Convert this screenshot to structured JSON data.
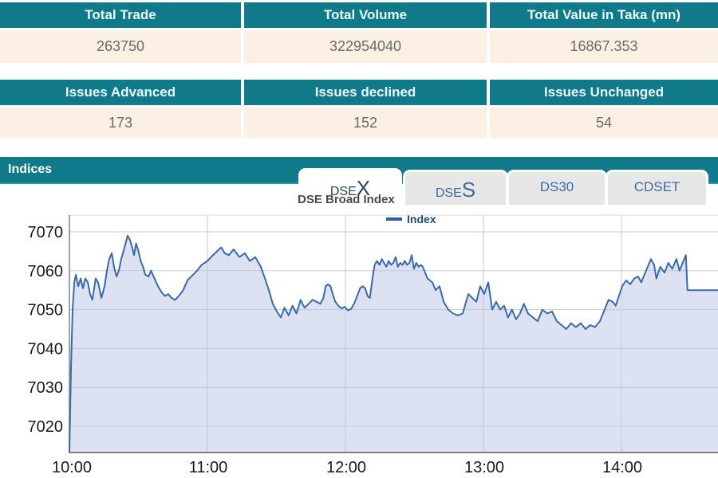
{
  "colors": {
    "teal": "#117A8A",
    "header_text": "#EAF8F8",
    "row_cream": "#FCEFE3",
    "row_text": "#6A6A6A",
    "tab_active_text": "#2B4358",
    "tab_inactive_text": "#3E6AA0",
    "line": "#3A6AA8",
    "area_fill": "#B9C6E4",
    "gridline": "#C9CBD1",
    "legend_text": "#1F4E79"
  },
  "summary_table": {
    "headers": [
      "Total Trade",
      "Total Volume",
      "Total Value in Taka (mn)"
    ],
    "values": [
      "263750",
      "322954040",
      "16867.353"
    ]
  },
  "issues_table": {
    "headers": [
      "Issues Advanced",
      "Issues declined",
      "Issues Unchanged"
    ],
    "values": [
      "173",
      "152",
      "54"
    ]
  },
  "indices_section": {
    "title": "Indices",
    "active_tab": "DSEX",
    "tabs": [
      {
        "prefix": "DSE",
        "suffix": "X"
      },
      {
        "prefix": "DSE",
        "suffix": "S"
      },
      {
        "prefix": "DS30",
        "suffix": ""
      },
      {
        "prefix": "CDSET",
        "suffix": ""
      }
    ]
  },
  "chart": {
    "title": "DSE Broad Index",
    "legend_label": "Index"
  },
  "chart_data": {
    "type": "area",
    "title": "DSE Broad Index",
    "series_name": "Index",
    "x_unit": "minutes since 10:00",
    "x_ticks": [
      "10:00",
      "11:00",
      "12:00",
      "13:00",
      "14:00"
    ],
    "x_tick_minutes": [
      0,
      60,
      120,
      180,
      240
    ],
    "y_ticks": [
      7070,
      7060,
      7050,
      7040,
      7030,
      7020
    ],
    "ylim": [
      7013,
      7074
    ],
    "xlim_minutes": [
      0,
      282
    ],
    "grid": true,
    "legend_position": "top-center",
    "points": [
      [
        0,
        7013
      ],
      [
        0.7,
        7035
      ],
      [
        1.4,
        7050
      ],
      [
        2.1,
        7057
      ],
      [
        2.8,
        7059
      ],
      [
        3.8,
        7056
      ],
      [
        4.9,
        7058
      ],
      [
        5.9,
        7055.5
      ],
      [
        6.9,
        7058
      ],
      [
        8,
        7057
      ],
      [
        9,
        7054
      ],
      [
        10,
        7052.5
      ],
      [
        11.4,
        7058
      ],
      [
        12.5,
        7057
      ],
      [
        13.9,
        7053
      ],
      [
        15.3,
        7056
      ],
      [
        16.3,
        7060
      ],
      [
        17.3,
        7063
      ],
      [
        18.4,
        7064.5
      ],
      [
        19.4,
        7061
      ],
      [
        20.5,
        7058.5
      ],
      [
        21.5,
        7060
      ],
      [
        22.5,
        7063
      ],
      [
        23.5,
        7065
      ],
      [
        24.4,
        7067
      ],
      [
        25.3,
        7069
      ],
      [
        26.3,
        7068
      ],
      [
        27.3,
        7066
      ],
      [
        28.1,
        7064
      ],
      [
        29,
        7067
      ],
      [
        30,
        7065
      ],
      [
        31,
        7062.5
      ],
      [
        32,
        7061
      ],
      [
        33,
        7059
      ],
      [
        34.4,
        7058.5
      ],
      [
        35.5,
        7060
      ],
      [
        37,
        7058
      ],
      [
        38.5,
        7056
      ],
      [
        40,
        7054.5
      ],
      [
        41.5,
        7053.5
      ],
      [
        43,
        7054
      ],
      [
        44.4,
        7053
      ],
      [
        46,
        7052.5
      ],
      [
        47.5,
        7053.5
      ],
      [
        49.5,
        7055
      ],
      [
        51.3,
        7057.5
      ],
      [
        53,
        7058.5
      ],
      [
        55.5,
        7060
      ],
      [
        57.5,
        7061.5
      ],
      [
        60,
        7062.5
      ],
      [
        62.4,
        7064
      ],
      [
        64.2,
        7065
      ],
      [
        66,
        7066
      ],
      [
        67.5,
        7064.5
      ],
      [
        69.3,
        7064
      ],
      [
        71.4,
        7065.5
      ],
      [
        73.9,
        7063.5
      ],
      [
        76.3,
        7064.5
      ],
      [
        78.4,
        7062.5
      ],
      [
        80.8,
        7063.5
      ],
      [
        83.2,
        7061
      ],
      [
        85,
        7058
      ],
      [
        86.7,
        7055
      ],
      [
        88.4,
        7051.5
      ],
      [
        90.2,
        7049.5
      ],
      [
        91.9,
        7048
      ],
      [
        93.5,
        7050.5
      ],
      [
        95.3,
        7048.5
      ],
      [
        97,
        7051
      ],
      [
        98.7,
        7049
      ],
      [
        100.5,
        7052.5
      ],
      [
        102.2,
        7050.5
      ],
      [
        104,
        7051.5
      ],
      [
        105.7,
        7052.5
      ],
      [
        107.4,
        7052
      ],
      [
        109.1,
        7051.5
      ],
      [
        110.4,
        7053
      ],
      [
        111.4,
        7056
      ],
      [
        112.4,
        7056.5
      ],
      [
        113.5,
        7056
      ],
      [
        114.5,
        7054
      ],
      [
        115.6,
        7052
      ],
      [
        116.9,
        7051
      ],
      [
        118.3,
        7050.3
      ],
      [
        119.7,
        7050.7
      ],
      [
        121.1,
        7049.8
      ],
      [
        122.5,
        7050.2
      ],
      [
        124,
        7051.8
      ],
      [
        125.4,
        7054
      ],
      [
        126.4,
        7055.5
      ],
      [
        127.5,
        7056
      ],
      [
        128.6,
        7055.5
      ],
      [
        129.6,
        7053.5
      ],
      [
        130.6,
        7053
      ],
      [
        131.3,
        7056
      ],
      [
        132,
        7059
      ],
      [
        132.7,
        7061.5
      ],
      [
        133.7,
        7062.5
      ],
      [
        134.8,
        7061.5
      ],
      [
        135.8,
        7063
      ],
      [
        136.8,
        7062
      ],
      [
        137.8,
        7061
      ],
      [
        138.8,
        7062.5
      ],
      [
        139.8,
        7061.5
      ],
      [
        140.8,
        7062
      ],
      [
        141.8,
        7063.5
      ],
      [
        142.8,
        7061
      ],
      [
        143.8,
        7062
      ],
      [
        144.8,
        7061.5
      ],
      [
        145.8,
        7062.5
      ],
      [
        146.8,
        7061.5
      ],
      [
        147.8,
        7062
      ],
      [
        148.8,
        7064
      ],
      [
        149.8,
        7060.5
      ],
      [
        150.8,
        7062
      ],
      [
        151.8,
        7061
      ],
      [
        152.8,
        7061.5
      ],
      [
        153.6,
        7061
      ],
      [
        155.7,
        7058
      ],
      [
        157.8,
        7057
      ],
      [
        159.2,
        7055
      ],
      [
        160.9,
        7056
      ],
      [
        162.7,
        7052
      ],
      [
        164.7,
        7050
      ],
      [
        166.8,
        7049
      ],
      [
        168.9,
        7048.5
      ],
      [
        171,
        7049
      ],
      [
        173.4,
        7054
      ],
      [
        175.1,
        7053
      ],
      [
        176.9,
        7052
      ],
      [
        178.6,
        7056
      ],
      [
        180.3,
        7054
      ],
      [
        182.1,
        7057
      ],
      [
        183.8,
        7050
      ],
      [
        185.5,
        7052
      ],
      [
        187.3,
        7050
      ],
      [
        189,
        7051
      ],
      [
        190.7,
        7048
      ],
      [
        192.4,
        7050
      ],
      [
        194.2,
        7047.5
      ],
      [
        195.9,
        7049
      ],
      [
        197.6,
        7051.5
      ],
      [
        199.4,
        7049
      ],
      [
        201.5,
        7048
      ],
      [
        203.6,
        7047
      ],
      [
        205.6,
        7050
      ],
      [
        207.7,
        7049
      ],
      [
        209.8,
        7049.5
      ],
      [
        211.9,
        7047
      ],
      [
        214,
        7046
      ],
      [
        216,
        7045
      ],
      [
        218.1,
        7046.5
      ],
      [
        220.2,
        7045.5
      ],
      [
        222.3,
        7046.5
      ],
      [
        224.4,
        7045
      ],
      [
        226.4,
        7046
      ],
      [
        228.5,
        7045.5
      ],
      [
        230.6,
        7047
      ],
      [
        232.7,
        7050
      ],
      [
        234.4,
        7052.5
      ],
      [
        236.2,
        7052
      ],
      [
        237.5,
        7051
      ],
      [
        238.9,
        7053.5
      ],
      [
        240.3,
        7056
      ],
      [
        242,
        7057.5
      ],
      [
        243.8,
        7056.5
      ],
      [
        245.5,
        7058
      ],
      [
        247.2,
        7058.5
      ],
      [
        248.6,
        7057
      ],
      [
        250,
        7059
      ],
      [
        251.4,
        7061
      ],
      [
        252.8,
        7063
      ],
      [
        254.2,
        7061.5
      ],
      [
        255.2,
        7058
      ],
      [
        256.9,
        7061
      ],
      [
        258.7,
        7059.5
      ],
      [
        260.4,
        7062
      ],
      [
        262.1,
        7060.5
      ],
      [
        263.9,
        7063
      ],
      [
        265.3,
        7060
      ],
      [
        266.6,
        7062
      ],
      [
        268,
        7064
      ],
      [
        268.7,
        7055
      ],
      [
        282,
        7055
      ]
    ]
  }
}
